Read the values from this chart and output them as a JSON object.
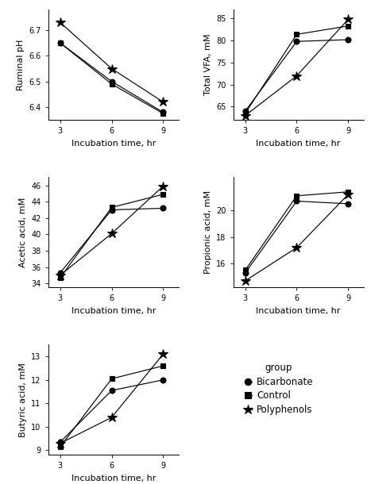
{
  "x": [
    3,
    6,
    9
  ],
  "groups": [
    "Bicarbonate",
    "Control",
    "Polyphenols"
  ],
  "markers": [
    "o",
    "s",
    "*"
  ],
  "ruminal_pH": {
    "Bicarbonate": [
      6.65,
      6.5,
      6.38
    ],
    "Control": [
      6.65,
      6.49,
      6.375
    ],
    "Polyphenols": [
      6.73,
      6.55,
      6.42
    ]
  },
  "ruminal_pH_ylim": [
    6.35,
    6.78
  ],
  "ruminal_pH_yticks": [
    6.4,
    6.5,
    6.6,
    6.7
  ],
  "ruminal_pH_ylabel": "Ruminal pH",
  "total_VFA": {
    "Bicarbonate": [
      64.0,
      79.8,
      80.2
    ],
    "Control": [
      63.5,
      81.4,
      83.3
    ],
    "Polyphenols": [
      63.0,
      72.0,
      84.8
    ]
  },
  "total_VFA_ylim": [
    62,
    87
  ],
  "total_VFA_yticks": [
    65,
    70,
    75,
    80,
    85
  ],
  "total_VFA_ylabel": "Total VFA, mM",
  "acetic_acid": {
    "Bicarbonate": [
      35.3,
      43.0,
      43.2
    ],
    "Control": [
      34.7,
      43.3,
      44.9
    ],
    "Polyphenols": [
      35.0,
      40.1,
      45.9
    ]
  },
  "acetic_acid_ylim": [
    33.5,
    47
  ],
  "acetic_acid_yticks": [
    34,
    36,
    38,
    40,
    42,
    44,
    46
  ],
  "acetic_acid_ylabel": "Acetic acid, mM",
  "propionic_acid": {
    "Bicarbonate": [
      15.3,
      20.7,
      20.5
    ],
    "Control": [
      15.5,
      21.1,
      21.4
    ],
    "Polyphenols": [
      14.7,
      17.2,
      21.2
    ]
  },
  "propionic_acid_ylim": [
    14.2,
    22.5
  ],
  "propionic_acid_yticks": [
    16,
    18,
    20
  ],
  "propionic_acid_ylabel": "Propionic acid, mM",
  "butyric_acid": {
    "Bicarbonate": [
      9.35,
      11.55,
      12.0
    ],
    "Control": [
      9.15,
      12.05,
      12.6
    ],
    "Polyphenols": [
      9.3,
      10.4,
      13.1
    ]
  },
  "butyric_acid_ylim": [
    8.8,
    13.5
  ],
  "butyric_acid_yticks": [
    9,
    10,
    11,
    12,
    13
  ],
  "butyric_acid_ylabel": "Butyric acid, mM",
  "xlabel": "Incubation time, hr",
  "xticks": [
    3,
    6,
    9
  ],
  "xlim": [
    2.3,
    9.9
  ],
  "legend_title": "group",
  "legend_labels": [
    "Bicarbonate",
    "Control",
    "Polyphenols"
  ],
  "tick_fontsize": 7,
  "label_fontsize": 8,
  "legend_fontsize": 8.5
}
